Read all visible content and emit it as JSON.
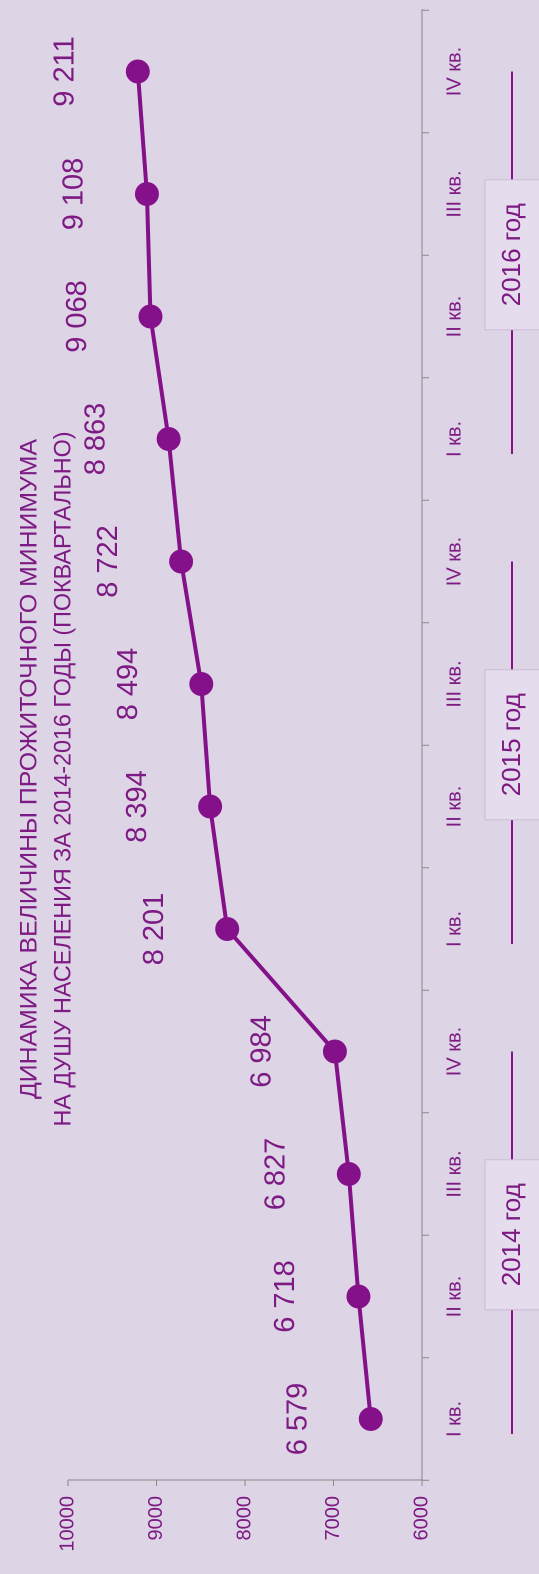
{
  "chart_data": {
    "type": "line",
    "title": "ДИНАМИКА ВЕЛИЧИНЫ ПРОЖИТОЧНОГО МИНИМУМА",
    "subtitle": "НА ДУШУ НАСЕЛЕНИЯ ЗА 2014-2016 ГОДЫ (ПОКВАРТАЛЬНО)",
    "categories": [
      "I кв.",
      "II кв.",
      "III кв.",
      "IV кв.",
      "I кв.",
      "II кв.",
      "III кв.",
      "IV кв.",
      "I кв.",
      "II кв.",
      "III кв.",
      "IV кв."
    ],
    "years": [
      "2014 год",
      "2015 год",
      "2016 год"
    ],
    "values": [
      6579,
      6718,
      6827,
      6984,
      8201,
      8394,
      8494,
      8722,
      8863,
      9068,
      9108,
      9211
    ],
    "value_labels": [
      "6 579",
      "6 718",
      "6 827",
      "6 984",
      "8 201",
      "8 394",
      "8 494",
      "8 722",
      "8 863",
      "9 068",
      "9 108",
      "9 211"
    ],
    "color": "#84118a",
    "ylim": [
      6000,
      10000
    ],
    "yticks": [
      6000,
      7000,
      8000,
      9000,
      10000
    ]
  }
}
